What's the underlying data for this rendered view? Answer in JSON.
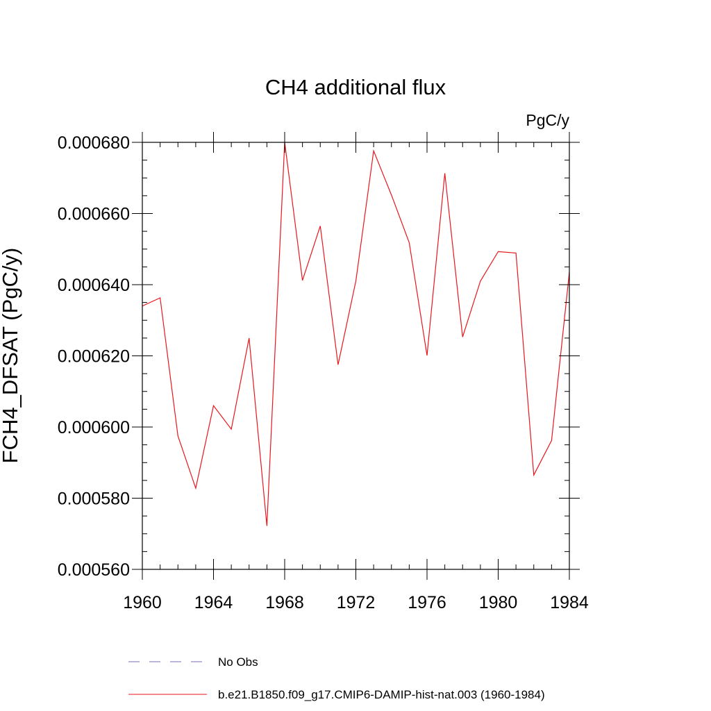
{
  "chart_data": {
    "type": "line",
    "title": "CH4 additional flux",
    "units_label": "PgC/y",
    "ylabel": "FCH4_DFSAT  (PgC/y)",
    "xlabel": "",
    "xlim": [
      1960,
      1984
    ],
    "ylim": [
      0.00056,
      0.00068
    ],
    "x_ticks": [
      1960,
      1964,
      1968,
      1972,
      1976,
      1980,
      1984
    ],
    "y_ticks": [
      0.00056,
      0.00058,
      0.0006,
      0.00062,
      0.00064,
      0.00066,
      0.00068
    ],
    "x_tick_labels": [
      "1960",
      "1964",
      "1968",
      "1972",
      "1976",
      "1980",
      "1984"
    ],
    "y_tick_labels": [
      "0.000560",
      "0.000580",
      "0.000600",
      "0.000620",
      "0.000640",
      "0.000660",
      "0.000680"
    ],
    "grid": false,
    "legend_position": "bottom",
    "series": [
      {
        "name": "No Obs",
        "color": "#7b68b0",
        "dash": true,
        "x": [],
        "values": []
      },
      {
        "name": "b.e21.B1850.f09_g17.CMIP6-DAMIP-hist-nat.003 (1960-1984)",
        "color": "#e8161b",
        "dash": false,
        "x": [
          1960,
          1961,
          1962,
          1963,
          1964,
          1965,
          1966,
          1967,
          1968,
          1969,
          1970,
          1971,
          1972,
          1973,
          1974,
          1975,
          1976,
          1977,
          1978,
          1979,
          1980,
          1981,
          1982,
          1983,
          1984
        ],
        "values": [
          0.000634,
          0.0006363,
          0.0005975,
          0.0005828,
          0.000606,
          0.0005994,
          0.000625,
          0.0005722,
          0.00068,
          0.0006412,
          0.0006565,
          0.0006175,
          0.000641,
          0.0006776,
          0.0006652,
          0.0006518,
          0.0006201,
          0.0006713,
          0.0006253,
          0.000641,
          0.0006493,
          0.0006489,
          0.0005865,
          0.0005962,
          0.0006435
        ]
      }
    ]
  }
}
